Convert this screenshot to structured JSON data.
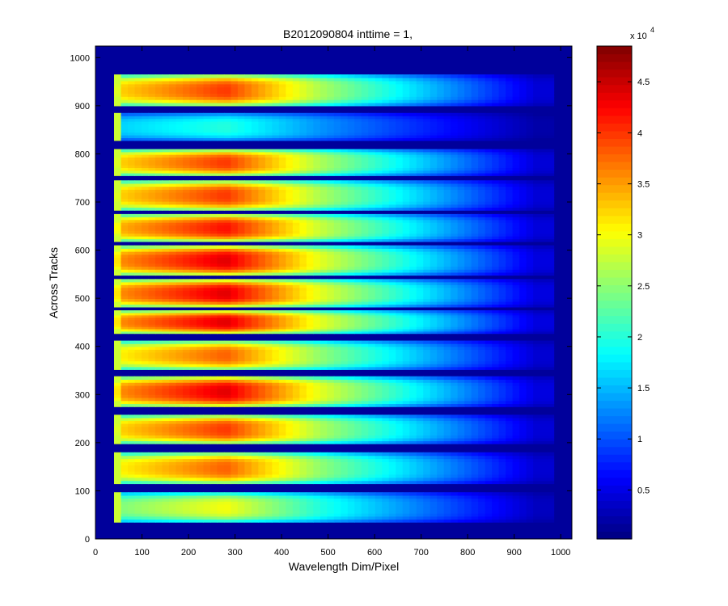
{
  "chart_data": {
    "type": "heatmap",
    "title": "B2012090804 inttime = 1,",
    "xlabel": "Wavelength Dim/Pixel",
    "ylabel": "Across Tracks",
    "xlim": [
      0,
      1024
    ],
    "ylim": [
      0,
      1024
    ],
    "xticks": [
      0,
      100,
      200,
      300,
      400,
      500,
      600,
      700,
      800,
      900,
      1000
    ],
    "yticks": [
      0,
      100,
      200,
      300,
      400,
      500,
      600,
      700,
      800,
      900,
      1000
    ],
    "colormap": "jet",
    "clim": [
      200,
      48500
    ],
    "colorbar_ticks": [
      0.5,
      1,
      1.5,
      2,
      2.5,
      3,
      3.5,
      4,
      4.5
    ],
    "colorbar_exponent_base": "x 10",
    "colorbar_exponent": "4",
    "bands": [
      {
        "y_range": [
          35,
          97
        ],
        "peak": 30000,
        "x_start": 40
      },
      {
        "y_range": [
          115,
          180
        ],
        "peak": 38000,
        "x_start": 40
      },
      {
        "y_range": [
          198,
          258
        ],
        "peak": 40000,
        "x_start": 40
      },
      {
        "y_range": [
          275,
          338
        ],
        "peak": 44000,
        "x_start": 40
      },
      {
        "y_range": [
          352,
          412
        ],
        "peak": 38000,
        "x_start": 40
      },
      {
        "y_range": [
          427,
          475
        ],
        "peak": 44000,
        "x_start": 40
      },
      {
        "y_range": [
          482,
          540
        ],
        "peak": 44000,
        "x_start": 40
      },
      {
        "y_range": [
          548,
          610
        ],
        "peak": 44000,
        "x_start": 40
      },
      {
        "y_range": [
          618,
          675
        ],
        "peak": 42000,
        "x_start": 40
      },
      {
        "y_range": [
          683,
          745
        ],
        "peak": 40000,
        "x_start": 40
      },
      {
        "y_range": [
          755,
          810
        ],
        "peak": 40000,
        "x_start": 40
      },
      {
        "y_range": [
          828,
          885
        ],
        "peak": 20000,
        "x_start": 40
      },
      {
        "y_range": [
          900,
          965
        ],
        "peak": 40000,
        "x_start": 40
      }
    ],
    "background_value": 1500,
    "gap_value": 300
  }
}
